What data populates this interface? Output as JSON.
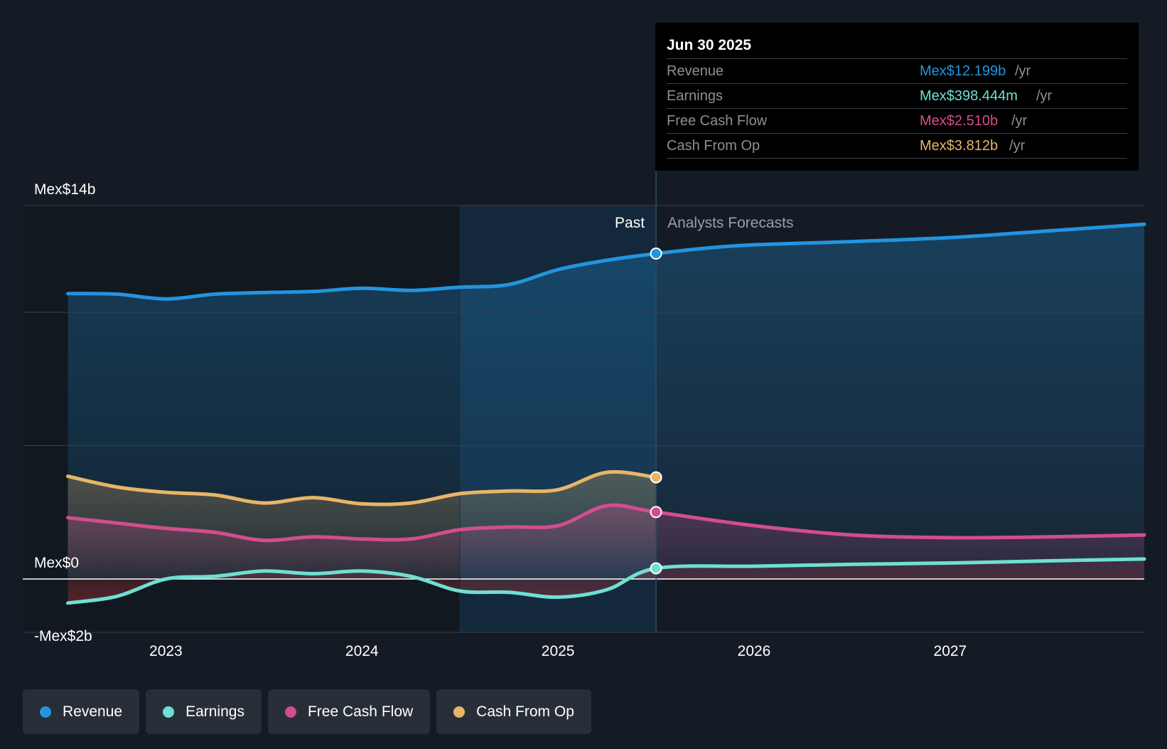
{
  "colors": {
    "background": "#151b24",
    "revenue": "#2394df",
    "earnings": "#6ee0d3",
    "fcf": "#d34d8e",
    "cfo": "#e8b567",
    "axis": "#ffffff"
  },
  "tooltip": {
    "date": "Jun 30 2025",
    "rows": [
      {
        "label": "Revenue",
        "value": "Mex$12.199b",
        "unit": "/yr"
      },
      {
        "label": "Earnings",
        "value": "Mex$398.444m",
        "unit": "/yr"
      },
      {
        "label": "Free Cash Flow",
        "value": "Mex$2.510b",
        "unit": "/yr"
      },
      {
        "label": "Cash From Op",
        "value": "Mex$3.812b",
        "unit": "/yr"
      }
    ]
  },
  "legend": [
    {
      "label": "Revenue"
    },
    {
      "label": "Earnings"
    },
    {
      "label": "Free Cash Flow"
    },
    {
      "label": "Cash From Op"
    }
  ],
  "chart_data": {
    "type": "line",
    "title": "",
    "xlabel": "",
    "ylabel": "",
    "ylim": [
      -2,
      14
    ],
    "xlim": [
      2022.27,
      2027.99
    ],
    "y_tick_labels": [
      {
        "value": 14,
        "label": "Mex$14b"
      },
      {
        "value": 0,
        "label": "Mex$0"
      },
      {
        "value": -2,
        "label": "-Mex$2b"
      }
    ],
    "gridlines": [
      14,
      10,
      5
    ],
    "x_ticks": [
      {
        "value": 2023,
        "label": "2023"
      },
      {
        "value": 2024,
        "label": "2024"
      },
      {
        "value": 2025,
        "label": "2025"
      },
      {
        "value": 2026,
        "label": "2026"
      },
      {
        "value": 2027,
        "label": "2027"
      }
    ],
    "past_label": "Past",
    "forecast_label": "Analysts Forecasts",
    "divider_x": 2025.5,
    "highlight_start_x": 2024.5,
    "series": [
      {
        "name": "Revenue",
        "key": "revenue",
        "points": [
          [
            2022.5,
            10.7
          ],
          [
            2022.75,
            10.68
          ],
          [
            2023.0,
            10.5
          ],
          [
            2023.25,
            10.68
          ],
          [
            2023.5,
            10.74
          ],
          [
            2023.75,
            10.78
          ],
          [
            2024.0,
            10.9
          ],
          [
            2024.25,
            10.82
          ],
          [
            2024.5,
            10.94
          ],
          [
            2024.75,
            11.04
          ],
          [
            2025.0,
            11.6
          ],
          [
            2025.25,
            11.95
          ],
          [
            2025.5,
            12.2
          ],
          [
            2025.75,
            12.4
          ],
          [
            2026.0,
            12.53
          ],
          [
            2026.5,
            12.65
          ],
          [
            2027.0,
            12.8
          ],
          [
            2027.5,
            13.05
          ],
          [
            2027.99,
            13.3
          ]
        ],
        "forecast_from": 2025.5
      },
      {
        "name": "Cash From Op",
        "key": "cfo",
        "points": [
          [
            2022.5,
            3.85
          ],
          [
            2022.75,
            3.45
          ],
          [
            2023.0,
            3.25
          ],
          [
            2023.25,
            3.15
          ],
          [
            2023.5,
            2.85
          ],
          [
            2023.75,
            3.05
          ],
          [
            2024.0,
            2.82
          ],
          [
            2024.25,
            2.85
          ],
          [
            2024.5,
            3.2
          ],
          [
            2024.75,
            3.3
          ],
          [
            2025.0,
            3.35
          ],
          [
            2025.25,
            4.0
          ],
          [
            2025.5,
            3.81
          ]
        ],
        "forecast_from": null
      },
      {
        "name": "Free Cash Flow",
        "key": "fcf",
        "points": [
          [
            2022.5,
            2.3
          ],
          [
            2022.75,
            2.1
          ],
          [
            2023.0,
            1.9
          ],
          [
            2023.25,
            1.75
          ],
          [
            2023.5,
            1.45
          ],
          [
            2023.75,
            1.58
          ],
          [
            2024.0,
            1.5
          ],
          [
            2024.25,
            1.5
          ],
          [
            2024.5,
            1.85
          ],
          [
            2024.75,
            1.95
          ],
          [
            2025.0,
            2.0
          ],
          [
            2025.25,
            2.75
          ],
          [
            2025.5,
            2.51
          ],
          [
            2026.0,
            2.0
          ],
          [
            2026.5,
            1.65
          ],
          [
            2027.0,
            1.55
          ],
          [
            2027.5,
            1.58
          ],
          [
            2027.99,
            1.65
          ]
        ],
        "forecast_from": 2025.5
      },
      {
        "name": "Earnings",
        "key": "earnings",
        "points": [
          [
            2022.5,
            -0.9
          ],
          [
            2022.75,
            -0.65
          ],
          [
            2023.0,
            0.0
          ],
          [
            2023.25,
            0.1
          ],
          [
            2023.5,
            0.3
          ],
          [
            2023.75,
            0.2
          ],
          [
            2024.0,
            0.3
          ],
          [
            2024.25,
            0.1
          ],
          [
            2024.5,
            -0.45
          ],
          [
            2024.75,
            -0.5
          ],
          [
            2025.0,
            -0.68
          ],
          [
            2025.25,
            -0.4
          ],
          [
            2025.5,
            0.4
          ],
          [
            2026.0,
            0.48
          ],
          [
            2026.5,
            0.55
          ],
          [
            2027.0,
            0.6
          ],
          [
            2027.5,
            0.68
          ],
          [
            2027.99,
            0.75
          ]
        ],
        "forecast_from": 2025.5
      }
    ],
    "markers": [
      {
        "series": "revenue",
        "x": 2025.5,
        "y": 12.2
      },
      {
        "series": "cfo",
        "x": 2025.5,
        "y": 3.81
      },
      {
        "series": "fcf",
        "x": 2025.5,
        "y": 2.51
      },
      {
        "series": "earnings",
        "x": 2025.5,
        "y": 0.4
      }
    ]
  }
}
